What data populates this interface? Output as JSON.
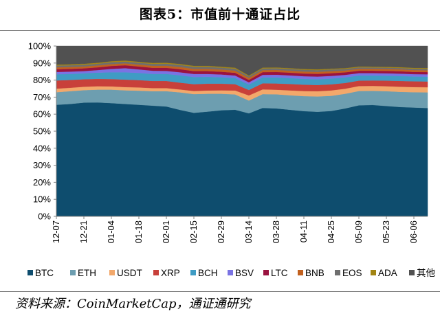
{
  "title": "图表5：市值前十通证占比",
  "source": "资料来源：CoinMarketCap，通证通研究",
  "chart_data": {
    "type": "area",
    "stacked": true,
    "percent": true,
    "x": [
      "12-07",
      "12-14",
      "12-21",
      "12-28",
      "01-04",
      "01-11",
      "01-18",
      "01-25",
      "02-01",
      "02-08",
      "02-15",
      "02-22",
      "02-29",
      "03-07",
      "03-14",
      "03-21",
      "03-28",
      "04-04",
      "04-11",
      "04-18",
      "04-25",
      "05-02",
      "05-09",
      "05-16",
      "05-23",
      "05-30",
      "06-06",
      "06-13"
    ],
    "xtick_labels": [
      "12-07",
      "12-21",
      "01-04",
      "01-18",
      "02-01",
      "02-15",
      "02-29",
      "03-14",
      "03-28",
      "04-11",
      "04-25",
      "05-09",
      "05-23",
      "06-06"
    ],
    "yticks": [
      "0%",
      "10%",
      "20%",
      "30%",
      "40%",
      "50%",
      "60%",
      "70%",
      "80%",
      "90%",
      "100%"
    ],
    "ylim": [
      0,
      100
    ],
    "grid": false,
    "legend_position": "bottom",
    "series": [
      {
        "name": "BTC",
        "color": "#0e4d6e",
        "values": [
          65.5,
          66.0,
          66.8,
          66.9,
          66.5,
          66.0,
          65.5,
          65.0,
          64.5,
          62.5,
          60.8,
          61.5,
          62.3,
          62.6,
          60.5,
          64.3,
          64.0,
          63.2,
          62.4,
          62.0,
          62.5,
          64.0,
          65.2,
          65.4,
          64.8,
          64.2,
          63.9,
          63.6
        ]
      },
      {
        "name": "ETH",
        "color": "#6d9eb0",
        "values": [
          7.4,
          7.5,
          7.3,
          7.5,
          7.9,
          8.0,
          8.3,
          8.5,
          9.0,
          10.3,
          11.0,
          10.5,
          9.7,
          9.0,
          7.5,
          8.2,
          8.4,
          8.6,
          8.9,
          9.1,
          9.0,
          8.7,
          8.4,
          8.3,
          8.7,
          8.9,
          9.0,
          9.2
        ]
      },
      {
        "name": "USDT",
        "color": "#f2a86b",
        "values": [
          2.1,
          2.0,
          2.0,
          2.0,
          1.9,
          1.9,
          1.9,
          1.8,
          1.8,
          1.7,
          1.8,
          1.9,
          2.0,
          2.3,
          3.0,
          2.8,
          2.7,
          2.9,
          3.0,
          3.1,
          3.2,
          3.0,
          2.9,
          2.9,
          2.9,
          3.0,
          3.0,
          3.0
        ]
      },
      {
        "name": "XRP",
        "color": "#c8403a",
        "values": [
          4.8,
          4.6,
          4.4,
          4.3,
          4.3,
          4.4,
          4.3,
          4.2,
          4.2,
          4.0,
          4.0,
          4.0,
          3.9,
          3.7,
          3.2,
          3.6,
          3.7,
          3.8,
          3.8,
          3.7,
          3.6,
          3.4,
          3.2,
          3.2,
          3.3,
          3.4,
          3.4,
          3.4
        ]
      },
      {
        "name": "BCH",
        "color": "#3f9cc4",
        "values": [
          3.6,
          3.5,
          3.5,
          3.7,
          4.0,
          4.3,
          4.2,
          4.1,
          4.1,
          4.3,
          4.2,
          4.0,
          3.8,
          3.6,
          3.2,
          3.5,
          3.6,
          3.5,
          3.4,
          3.4,
          3.4,
          3.3,
          3.0,
          2.9,
          2.9,
          2.9,
          2.8,
          2.8
        ]
      },
      {
        "name": "BSV",
        "color": "#7a73e3",
        "values": [
          1.4,
          1.4,
          1.3,
          1.5,
          2.0,
          2.4,
          2.1,
          1.9,
          1.8,
          1.8,
          1.8,
          1.7,
          1.6,
          1.5,
          1.3,
          1.5,
          1.6,
          1.6,
          1.6,
          1.6,
          1.6,
          1.5,
          1.4,
          1.4,
          1.4,
          1.4,
          1.4,
          1.4
        ]
      },
      {
        "name": "LTC",
        "color": "#9a1340",
        "values": [
          1.6,
          1.6,
          1.6,
          1.6,
          1.7,
          1.7,
          1.7,
          1.7,
          1.8,
          1.8,
          1.7,
          1.7,
          1.6,
          1.6,
          1.4,
          1.6,
          1.6,
          1.6,
          1.6,
          1.6,
          1.6,
          1.5,
          1.4,
          1.4,
          1.4,
          1.4,
          1.3,
          1.3
        ]
      },
      {
        "name": "BNB",
        "color": "#c2611f",
        "values": [
          1.1,
          1.1,
          1.1,
          1.1,
          1.1,
          1.1,
          1.1,
          1.2,
          1.2,
          1.3,
          1.3,
          1.3,
          1.3,
          1.3,
          1.2,
          1.2,
          1.2,
          1.2,
          1.2,
          1.2,
          1.2,
          1.1,
          1.1,
          1.1,
          1.1,
          1.1,
          1.1,
          1.1
        ]
      },
      {
        "name": "EOS",
        "color": "#6e6e6e",
        "values": [
          1.0,
          1.0,
          1.0,
          1.0,
          1.1,
          1.1,
          1.1,
          1.1,
          1.2,
          1.2,
          1.2,
          1.2,
          1.1,
          1.1,
          0.9,
          1.0,
          1.0,
          1.0,
          1.0,
          1.0,
          1.0,
          0.9,
          0.9,
          0.8,
          0.8,
          0.8,
          0.8,
          0.8
        ]
      },
      {
        "name": "ADA",
        "color": "#a28513",
        "values": [
          0.6,
          0.6,
          0.6,
          0.6,
          0.6,
          0.6,
          0.6,
          0.6,
          0.6,
          0.6,
          0.6,
          0.6,
          0.6,
          0.6,
          0.5,
          0.5,
          0.5,
          0.5,
          0.5,
          0.5,
          0.5,
          0.5,
          0.5,
          0.5,
          0.5,
          0.5,
          0.5,
          0.5
        ]
      },
      {
        "name": "其他",
        "color": "#515151",
        "values": [
          10.9,
          10.7,
          10.4,
          9.8,
          8.9,
          8.5,
          9.2,
          9.9,
          9.8,
          10.5,
          11.6,
          11.6,
          12.1,
          12.7,
          17.3,
          12.8,
          12.7,
          13.1,
          13.6,
          13.8,
          13.4,
          13.1,
          12.0,
          12.1,
          12.2,
          12.4,
          12.8,
          12.9
        ]
      }
    ]
  }
}
